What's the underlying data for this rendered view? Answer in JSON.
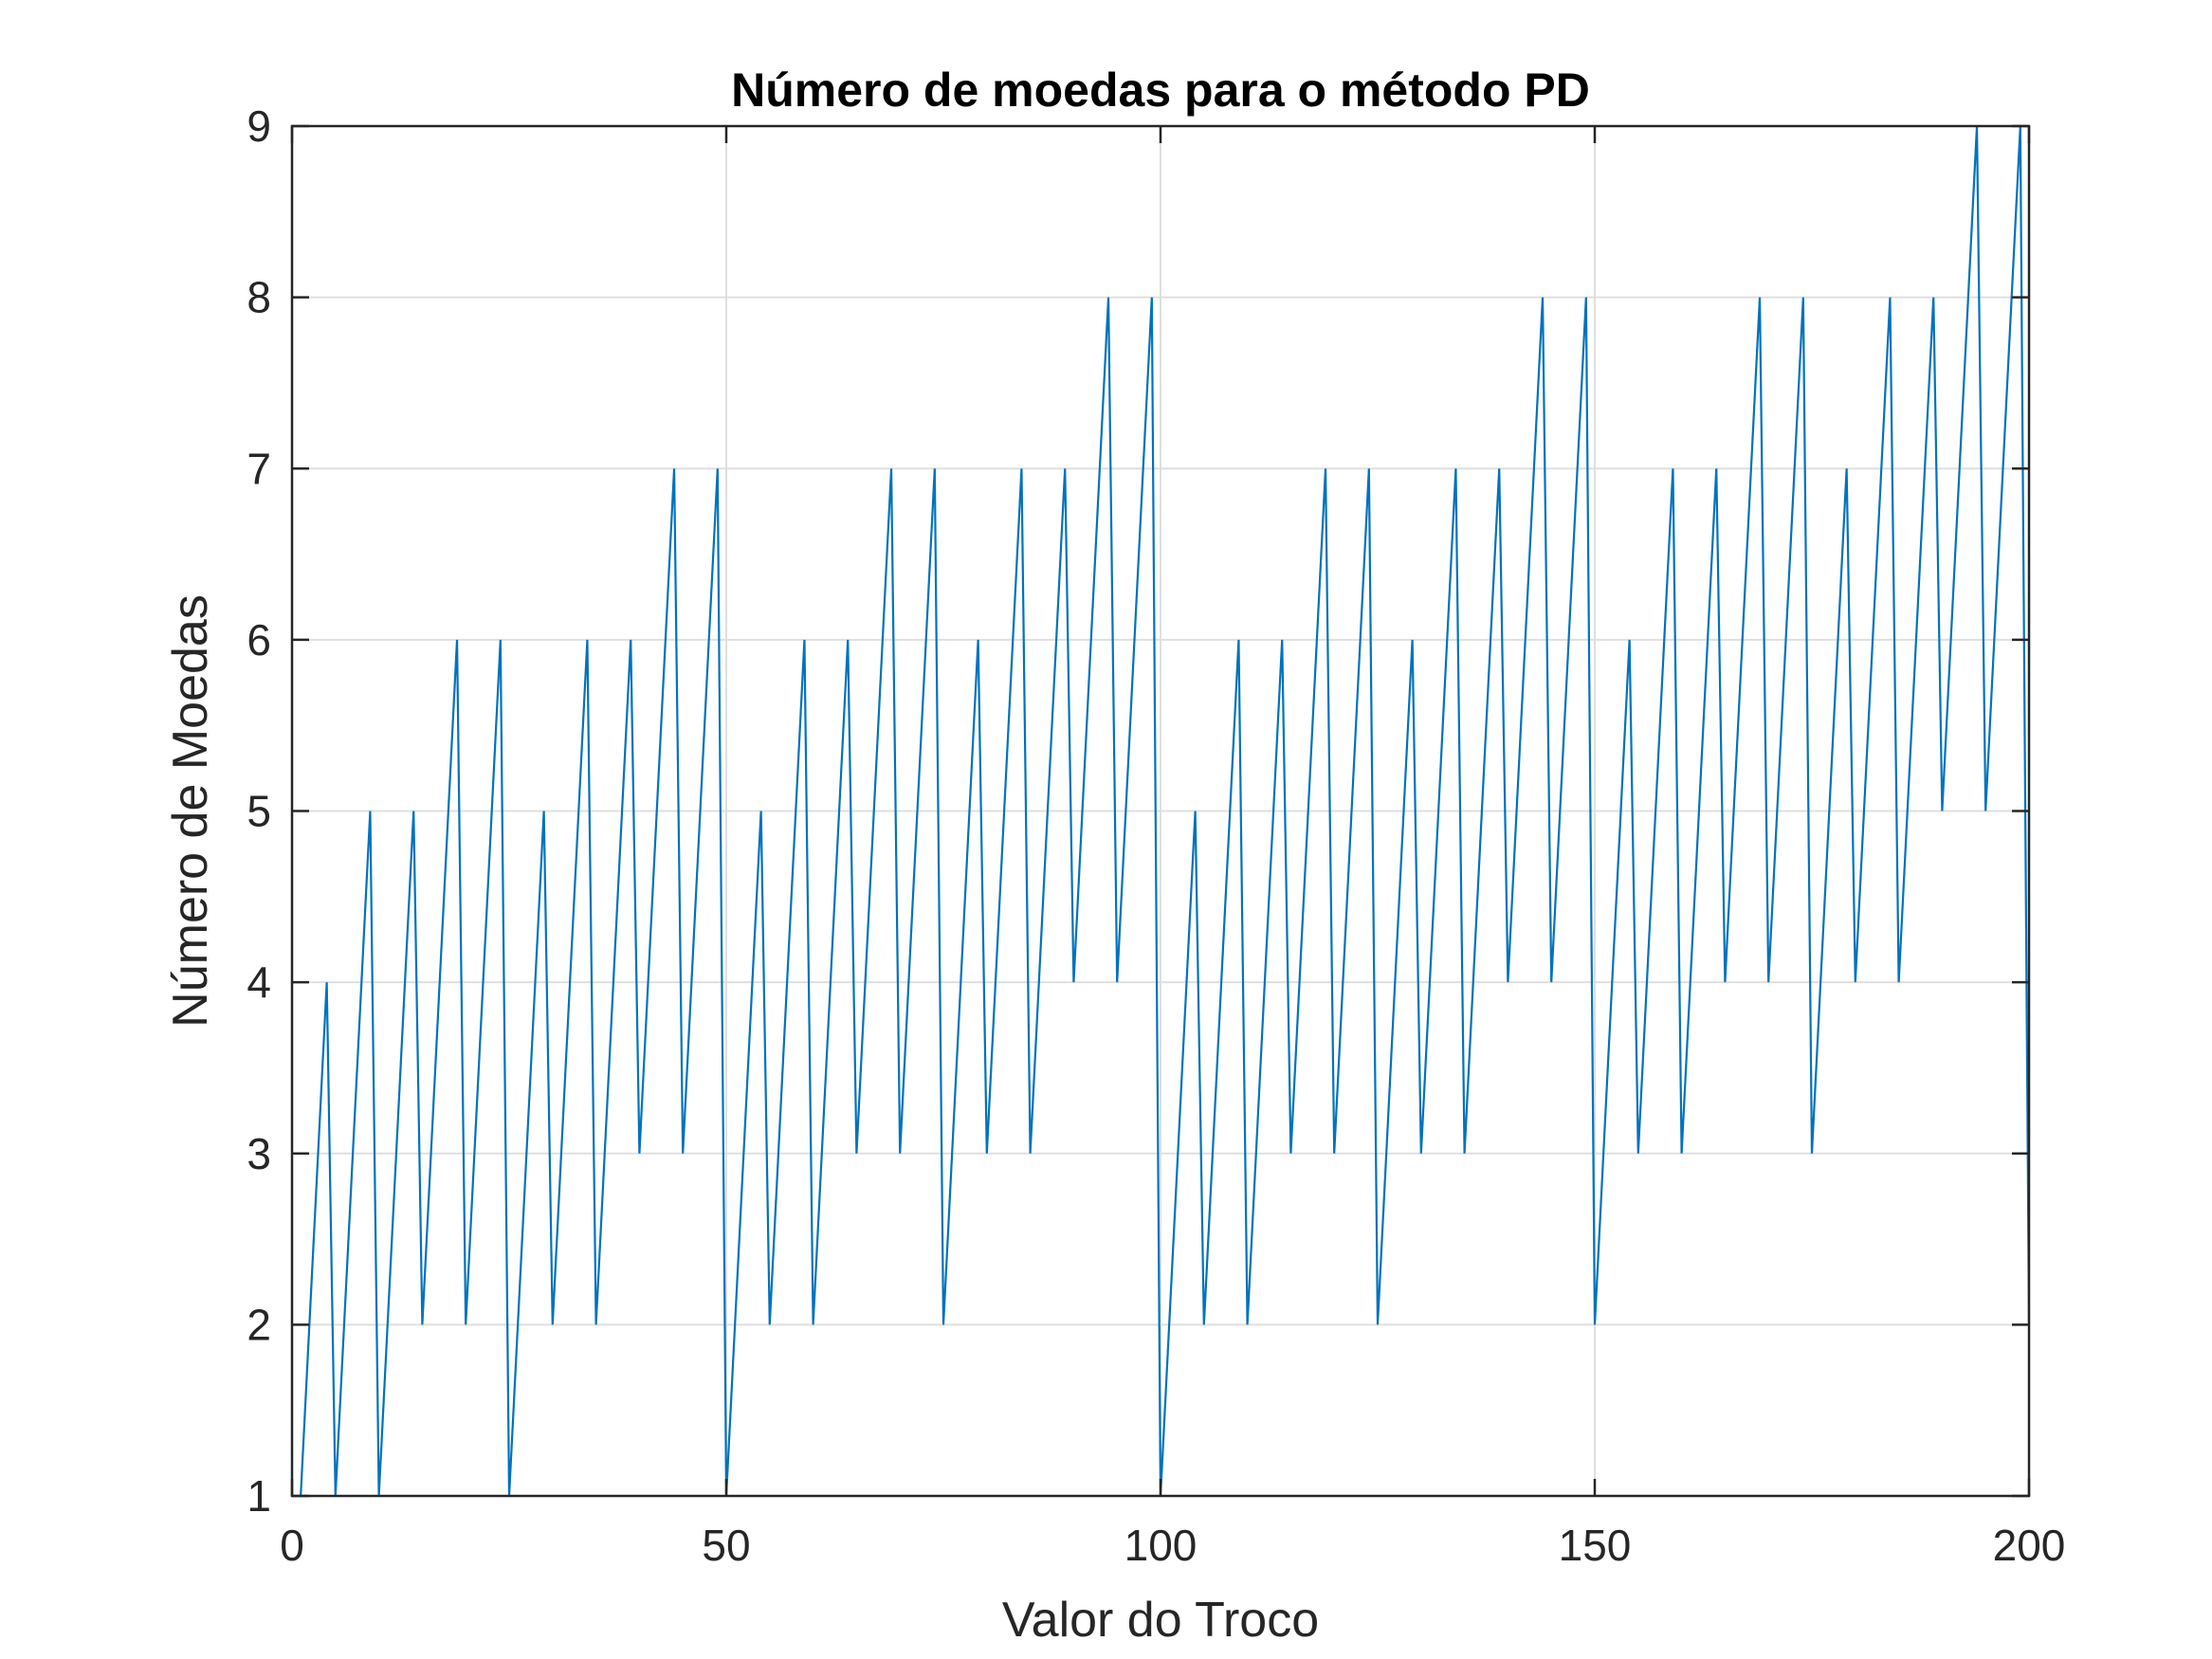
{
  "chart_data": {
    "type": "line",
    "title": "Número de moedas para o método PD",
    "xlabel": "Valor do Troco",
    "ylabel": "Número de Moedas",
    "xlim": [
      0,
      200
    ],
    "ylim": [
      1,
      9
    ],
    "xticks": [
      0,
      50,
      100,
      150,
      200
    ],
    "yticks": [
      1,
      2,
      3,
      4,
      5,
      6,
      7,
      8,
      9
    ],
    "xtick_labels": [
      "0",
      "50",
      "100",
      "150",
      "200"
    ],
    "ytick_labels": [
      "1",
      "2",
      "3",
      "4",
      "5",
      "6",
      "7",
      "8",
      "9"
    ],
    "grid": true,
    "line_color": "#0072BD",
    "x": [
      1,
      2,
      3,
      4,
      5,
      6,
      7,
      8,
      9,
      10,
      11,
      12,
      13,
      14,
      15,
      16,
      17,
      18,
      19,
      20,
      21,
      22,
      23,
      24,
      25,
      26,
      27,
      28,
      29,
      30,
      31,
      32,
      33,
      34,
      35,
      36,
      37,
      38,
      39,
      40,
      41,
      42,
      43,
      44,
      45,
      46,
      47,
      48,
      49,
      50,
      51,
      52,
      53,
      54,
      55,
      56,
      57,
      58,
      59,
      60,
      61,
      62,
      63,
      64,
      65,
      66,
      67,
      68,
      69,
      70,
      71,
      72,
      73,
      74,
      75,
      76,
      77,
      78,
      79,
      80,
      81,
      82,
      83,
      84,
      85,
      86,
      87,
      88,
      89,
      90,
      91,
      92,
      93,
      94,
      95,
      96,
      97,
      98,
      99,
      100,
      101,
      102,
      103,
      104,
      105,
      106,
      107,
      108,
      109,
      110,
      111,
      112,
      113,
      114,
      115,
      116,
      117,
      118,
      119,
      120,
      121,
      122,
      123,
      124,
      125,
      126,
      127,
      128,
      129,
      130,
      131,
      132,
      133,
      134,
      135,
      136,
      137,
      138,
      139,
      140,
      141,
      142,
      143,
      144,
      145,
      146,
      147,
      148,
      149,
      150,
      151,
      152,
      153,
      154,
      155,
      156,
      157,
      158,
      159,
      160,
      161,
      162,
      163,
      164,
      165,
      166,
      167,
      168,
      169,
      170,
      171,
      172,
      173,
      174,
      175,
      176,
      177,
      178,
      179,
      180,
      181,
      182,
      183,
      184,
      185,
      186,
      187,
      188,
      189,
      190,
      191,
      192,
      193,
      194,
      195,
      196,
      197,
      198,
      199,
      200
    ],
    "y": [
      1,
      2,
      3,
      4,
      1,
      2,
      3,
      4,
      5,
      1,
      2,
      3,
      4,
      5,
      2,
      3,
      4,
      5,
      6,
      2,
      3,
      4,
      5,
      6,
      1,
      2,
      3,
      4,
      5,
      2,
      3,
      4,
      5,
      6,
      2,
      3,
      4,
      5,
      6,
      3,
      4,
      5,
      6,
      7,
      3,
      4,
      5,
      6,
      7,
      1,
      2,
      3,
      4,
      5,
      2,
      3,
      4,
      5,
      6,
      2,
      3,
      4,
      5,
      6,
      3,
      4,
      5,
      6,
      7,
      3,
      4,
      5,
      6,
      7,
      2,
      3,
      4,
      5,
      6,
      3,
      4,
      5,
      6,
      7,
      3,
      4,
      5,
      6,
      7,
      4,
      5,
      6,
      7,
      8,
      4,
      5,
      6,
      7,
      8,
      1,
      2,
      3,
      4,
      5,
      2,
      3,
      4,
      5,
      6,
      2,
      3,
      4,
      5,
      6,
      3,
      4,
      5,
      6,
      7,
      3,
      4,
      5,
      6,
      7,
      2,
      3,
      4,
      5,
      6,
      3,
      4,
      5,
      6,
      7,
      3,
      4,
      5,
      6,
      7,
      4,
      5,
      6,
      7,
      8,
      4,
      5,
      6,
      7,
      8,
      2,
      3,
      4,
      5,
      6,
      3,
      4,
      5,
      6,
      7,
      3,
      4,
      5,
      6,
      7,
      4,
      5,
      6,
      7,
      8,
      4,
      5,
      6,
      7,
      8,
      3,
      4,
      5,
      6,
      7,
      4,
      5,
      6,
      7,
      8,
      4,
      5,
      6,
      7,
      8,
      5,
      6,
      7,
      8,
      9,
      5,
      6,
      7,
      8,
      9,
      2
    ]
  }
}
